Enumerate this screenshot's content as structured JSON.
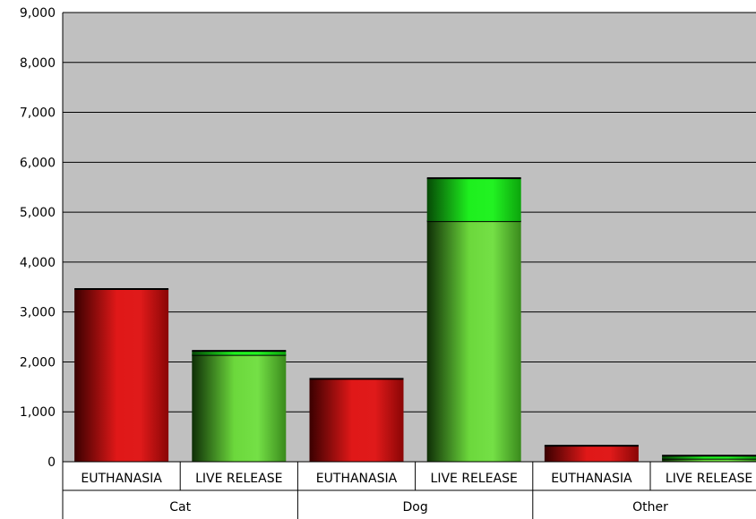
{
  "chart_data": {
    "type": "bar",
    "stacked": true,
    "ylim": [
      0,
      9000
    ],
    "yticks": [
      0,
      1000,
      2000,
      3000,
      4000,
      5000,
      6000,
      7000,
      8000,
      9000
    ],
    "ytick_labels": [
      "0",
      "1,000",
      "2,000",
      "3,000",
      "4,000",
      "5,000",
      "6,000",
      "7,000",
      "8,000",
      "9,000"
    ],
    "grid": true,
    "legend": "none",
    "groups": [
      "Cat",
      "Dog",
      "Other"
    ],
    "categories": [
      "EUTHANASIA",
      "LIVE RELEASE",
      "EUTHANASIA",
      "LIVE RELEASE",
      "EUTHANASIA",
      "LIVE RELEASE"
    ],
    "series": [
      {
        "values": [
          3460,
          2140,
          1660,
          4820,
          320,
          60
        ]
      },
      {
        "values": [
          0,
          80,
          0,
          860,
          0,
          60
        ]
      }
    ],
    "colors": {
      "euthanasia": "#d81818",
      "live_release_base": "#6ed43c",
      "live_release_top": "#1ee81e",
      "plot_bg": "#c0c0c0"
    }
  }
}
